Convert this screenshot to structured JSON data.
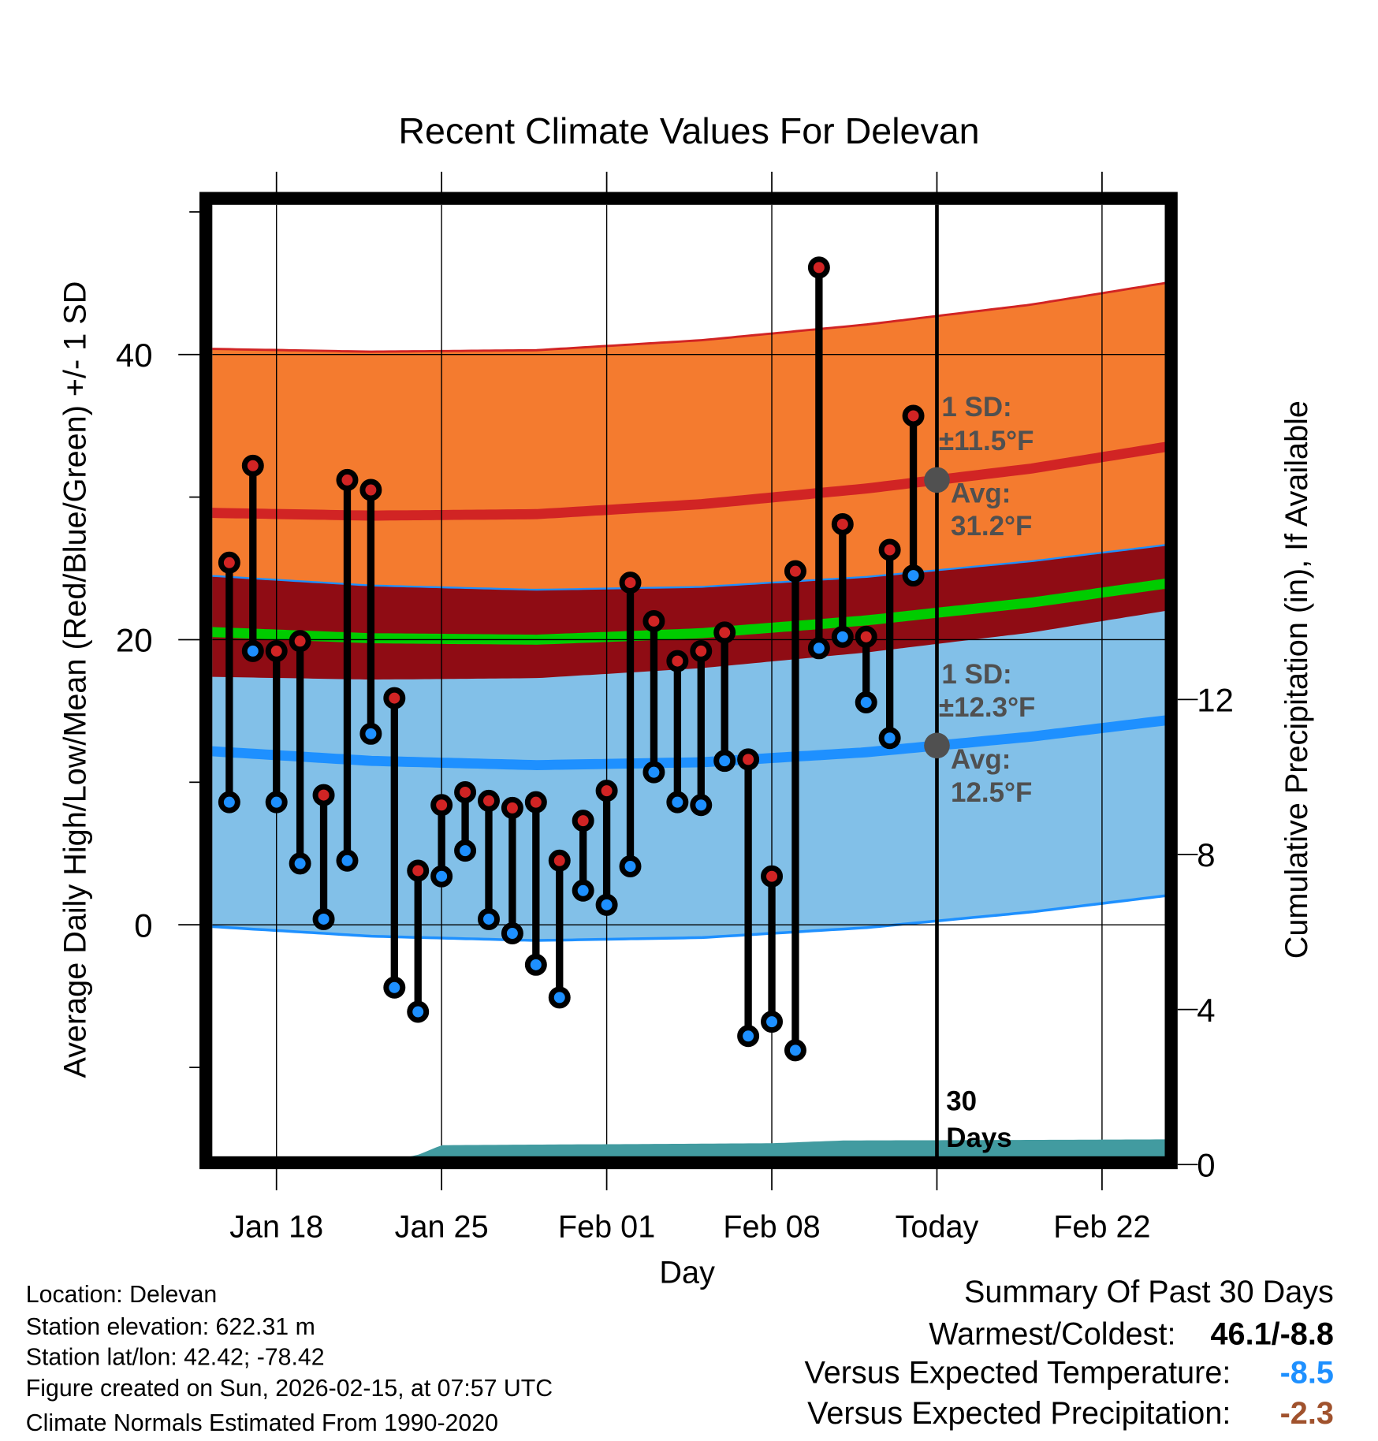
{
  "chart_data": {
    "type": "line",
    "title": "Recent Climate Values For Delevan",
    "xlabel": "Day",
    "ylabel": "Average Daily High/Low/Mean (Red/Blue/Green) +/- 1 SD",
    "ylabel_right": "Cumulative Precipitation (in), If Available",
    "ylim": [
      -16.3,
      50.5
    ],
    "ylim_right": [
      0,
      24
    ],
    "grid": true,
    "x_ticks": [
      {
        "day": 2,
        "label": "Jan 18"
      },
      {
        "day": 9,
        "label": "Jan 25"
      },
      {
        "day": 16,
        "label": "Feb 01"
      },
      {
        "day": 23,
        "label": "Feb 08"
      },
      {
        "day": 30,
        "label": "Today"
      },
      {
        "day": 37,
        "label": "Feb 22"
      }
    ],
    "y_ticks": [
      {
        "value": 0,
        "label": "0"
      },
      {
        "value": 20,
        "label": "20"
      },
      {
        "value": 40,
        "label": "40"
      }
    ],
    "y_minor_ticks": [
      -10,
      10,
      30,
      50
    ],
    "y_ticks_right": [
      {
        "value": 0,
        "label": "0"
      },
      {
        "value": 4,
        "label": "4"
      },
      {
        "value": 8,
        "label": "8"
      },
      {
        "value": 12,
        "label": "12"
      }
    ],
    "x_range_days": [
      -0.72,
      39.66
    ],
    "day_zero": "Jan 16",
    "daily": {
      "days": [
        0,
        1,
        2,
        3,
        4,
        5,
        6,
        7,
        8,
        9,
        10,
        11,
        12,
        13,
        14,
        15,
        16,
        17,
        18,
        19,
        20,
        21,
        22,
        23,
        24,
        25,
        26,
        27,
        28,
        29
      ],
      "highs": [
        25.4,
        32.2,
        19.2,
        19.9,
        9.1,
        31.2,
        30.5,
        15.9,
        3.8,
        8.4,
        9.3,
        8.7,
        8.2,
        8.6,
        4.5,
        7.3,
        9.4,
        24.0,
        21.3,
        18.5,
        19.2,
        20.5,
        11.6,
        3.4,
        24.8,
        46.1,
        28.1,
        20.2,
        26.3,
        35.7
      ],
      "lows": [
        8.6,
        19.2,
        8.6,
        4.3,
        0.4,
        4.5,
        13.4,
        -4.4,
        -6.1,
        3.4,
        5.2,
        0.4,
        -0.6,
        -2.8,
        -5.1,
        2.4,
        1.4,
        4.1,
        10.7,
        8.6,
        8.4,
        11.5,
        -7.8,
        -6.8,
        -8.8,
        19.4,
        20.2,
        15.6,
        13.1,
        24.5
      ]
    },
    "normals": {
      "days": [
        -1,
        6,
        13,
        20,
        27,
        34,
        40
      ],
      "high_mean": [
        28.9,
        28.7,
        28.8,
        29.5,
        30.6,
        32.0,
        33.6
      ],
      "high_sd": 11.5,
      "low_mean": [
        12.2,
        11.5,
        11.2,
        11.4,
        12.1,
        13.2,
        14.4
      ],
      "low_sd": 12.3
    },
    "precip": {
      "days": [
        -1,
        6,
        8,
        9,
        23,
        26,
        40
      ],
      "cumulative_in": [
        0,
        0,
        0.25,
        0.5,
        0.55,
        0.62,
        0.65
      ]
    },
    "annotations": {
      "high_sd_label": "1 SD:",
      "high_sd_value": "±11.5°F",
      "high_avg_label": "Avg:",
      "high_avg_value": "31.2°F",
      "low_sd_label": "1 SD:",
      "low_sd_value": "±12.3°F",
      "low_avg_label": "Avg:",
      "low_avg_value": "12.5°F",
      "period_line1": "30",
      "period_line2": "Days"
    },
    "colors": {
      "high_band": "#f47b2f",
      "overlap_band": "#8f0c14",
      "low_band": "#82c0e8",
      "high_line": "#d12424",
      "low_line": "#1e90ff",
      "mean_line": "#00cc00",
      "precip": "#429ba0",
      "annotation": "#505050"
    }
  },
  "footer": {
    "location": "Location: Delevan",
    "elevation": "Station elevation: 622.31 m",
    "latlon": "Station lat/lon: 42.42; -78.42",
    "created": "Figure created on Sun, 2026-02-15, at 07:57 UTC",
    "normals": "Climate Normals Estimated From 1990-2020"
  },
  "summary": {
    "title": "Summary Of Past 30 Days",
    "warmest_coldest_label": "Warmest/Coldest:",
    "warmest_coldest_value": "46.1/-8.8",
    "temp_label": "Versus Expected Temperature:",
    "temp_value": "-8.5",
    "temp_color": "#1e90ff",
    "precip_label": "Versus Expected Precipitation:",
    "precip_value": "-2.3",
    "precip_color": "#a0522d"
  }
}
